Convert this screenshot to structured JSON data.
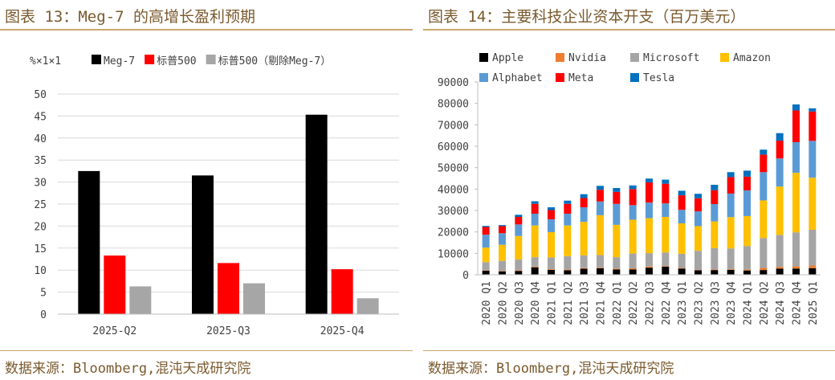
{
  "left_panel": {
    "title": "图表 13：Meg-7 的高增长盈利预期",
    "source": "数据来源：Bloomberg,混沌天成研究院"
  },
  "right_panel": {
    "title": "图表 14：主要科技企业资本开支（百万美元）",
    "source": "数据来源：Bloomberg,混沌天成研究院"
  },
  "colors": {
    "accent": "#c9a96e",
    "title_text": "#7a5a2e"
  },
  "chart_data": [
    {
      "type": "bar",
      "unit_label": "%×1×1",
      "categories": [
        "2025-Q2",
        "2025-Q3",
        "2025-Q4"
      ],
      "series": [
        {
          "name": "Meg-7",
          "color": "#000000",
          "values": [
            32.5,
            31.5,
            45.3
          ]
        },
        {
          "name": "标普500",
          "color": "#ff0000",
          "values": [
            13.3,
            11.6,
            10.2
          ]
        },
        {
          "name": "标普500（剔除Meg-7）",
          "color": "#a6a6a6",
          "values": [
            6.3,
            7.0,
            3.6
          ]
        }
      ],
      "ylim": [
        0,
        50
      ],
      "yticks": [
        0,
        5,
        10,
        15,
        20,
        25,
        30,
        35,
        40,
        45,
        50
      ],
      "grid": true,
      "legend": "top"
    },
    {
      "type": "bar",
      "stacked": true,
      "categories": [
        "2020 Q1",
        "2020 Q2",
        "2020 Q3",
        "2020 Q4",
        "2021 Q1",
        "2021 Q2",
        "2021 Q3",
        "2021 Q4",
        "2022 Q1",
        "2022 Q2",
        "2022 Q3",
        "2022 Q4",
        "2023 Q1",
        "2023 Q2",
        "2023 Q3",
        "2023 Q4",
        "2024 Q1",
        "2024 Q2",
        "2024 Q3",
        "2024 Q4",
        "2025 Q1"
      ],
      "series": [
        {
          "name": "Apple",
          "color": "#000000",
          "values": [
            1900,
            1600,
            1800,
            3500,
            2300,
            2100,
            2800,
            3000,
            2500,
            2500,
            3300,
            3800,
            2900,
            2100,
            2200,
            2300,
            2000,
            2200,
            2900,
            2900,
            3100
          ]
        },
        {
          "name": "Nvidia",
          "color": "#ed7d31",
          "values": [
            200,
            200,
            300,
            300,
            300,
            300,
            300,
            300,
            400,
            500,
            500,
            300,
            300,
            200,
            300,
            300,
            400,
            1000,
            800,
            1100,
            1200
          ]
        },
        {
          "name": "Microsoft",
          "color": "#a5a5a5",
          "values": [
            3800,
            4700,
            5000,
            4400,
            5500,
            6300,
            5900,
            5900,
            5300,
            6900,
            6300,
            6300,
            6600,
            8900,
            9900,
            9700,
            11000,
            13900,
            14900,
            15800,
            16700
          ]
        },
        {
          "name": "Amazon",
          "color": "#ffc000",
          "values": [
            6800,
            7500,
            11000,
            14800,
            11800,
            14300,
            15700,
            18600,
            15100,
            15800,
            16300,
            16600,
            14200,
            11500,
            12500,
            14600,
            14000,
            17600,
            22600,
            27800,
            24300
          ]
        },
        {
          "name": "Alphabet",
          "color": "#5b9bd5",
          "values": [
            6000,
            5400,
            5400,
            5500,
            6000,
            5500,
            6800,
            6400,
            9800,
            6800,
            7300,
            6300,
            6300,
            6900,
            8100,
            11000,
            12000,
            13200,
            13100,
            14300,
            17200
          ]
        },
        {
          "name": "Meta",
          "color": "#ff0000",
          "values": [
            3600,
            3300,
            3500,
            4600,
            4300,
            4600,
            4300,
            5500,
            5600,
            7500,
            9400,
            9200,
            6800,
            6100,
            6500,
            7700,
            6400,
            8200,
            8300,
            14800,
            13700
          ]
        },
        {
          "name": "Tesla",
          "color": "#0070c0",
          "values": [
            500,
            500,
            1000,
            1200,
            1300,
            1500,
            1800,
            1800,
            1800,
            1700,
            1800,
            1900,
            2100,
            2100,
            2500,
            2300,
            2800,
            2300,
            3500,
            2800,
            1500
          ]
        }
      ],
      "ylim": [
        0,
        90000
      ],
      "yticks": [
        0,
        10000,
        20000,
        30000,
        40000,
        50000,
        60000,
        70000,
        80000,
        90000
      ],
      "grid": true,
      "legend": "top"
    }
  ]
}
